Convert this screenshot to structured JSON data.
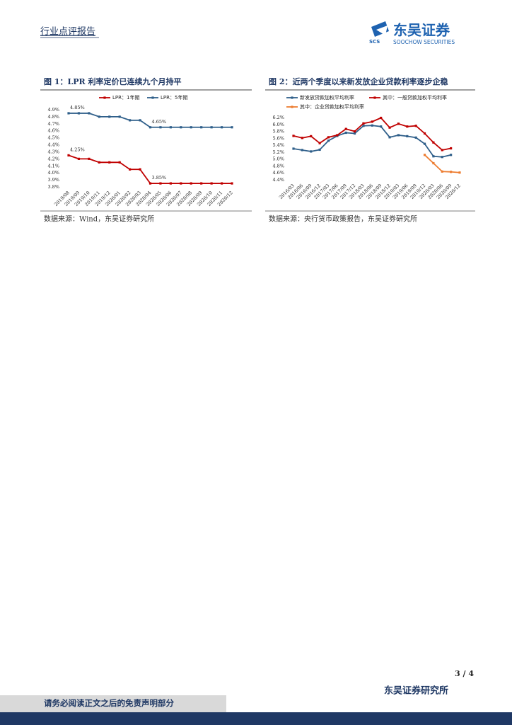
{
  "header": {
    "report_type": "行业点评报告",
    "logo_cn": "东吴证券",
    "logo_abbr": "SCS",
    "logo_en": "SOOCHOW SECURITIES"
  },
  "chart_data": [
    {
      "type": "line",
      "title": "图 1：LPR 利率定价已连续九个月持平",
      "source": "数据来源：Wind，东吴证券研究所",
      "categories": [
        "2019/08",
        "2019/09",
        "2019/10",
        "2019/11",
        "2019/12",
        "2020/01",
        "2020/02",
        "2020/03",
        "2020/04",
        "2020/05",
        "2020/06",
        "2020/07",
        "2020/08",
        "2020/09",
        "2020/10",
        "2020/11",
        "2020/12"
      ],
      "series": [
        {
          "name": "LPR：1年期",
          "color": "#c00000",
          "values": [
            4.25,
            4.2,
            4.2,
            4.15,
            4.15,
            4.15,
            4.05,
            4.05,
            3.85,
            3.85,
            3.85,
            3.85,
            3.85,
            3.85,
            3.85,
            3.85,
            3.85
          ],
          "value_labels": [
            "4.25%",
            null,
            null,
            null,
            null,
            null,
            null,
            null,
            "3.85%",
            null,
            null,
            null,
            null,
            null,
            null,
            null,
            null
          ]
        },
        {
          "name": "LPR：5年期",
          "color": "#2f5f8a",
          "values": [
            4.85,
            4.85,
            4.85,
            4.8,
            4.8,
            4.8,
            4.75,
            4.75,
            4.65,
            4.65,
            4.65,
            4.65,
            4.65,
            4.65,
            4.65,
            4.65,
            4.65
          ],
          "value_labels": [
            "4.85%",
            null,
            null,
            null,
            null,
            null,
            null,
            null,
            "4.65%",
            null,
            null,
            null,
            null,
            null,
            null,
            null,
            null
          ]
        }
      ],
      "ylim": [
        3.8,
        4.9
      ],
      "yticks": [
        {
          "value": 3.8,
          "label": "3.8%"
        },
        {
          "value": 3.9,
          "label": "3.9%"
        },
        {
          "value": 4.0,
          "label": "4.0%"
        },
        {
          "value": 4.1,
          "label": "4.1%"
        },
        {
          "value": 4.2,
          "label": "4.2%"
        },
        {
          "value": 4.3,
          "label": "4.3%"
        },
        {
          "value": 4.4,
          "label": "4.4%"
        },
        {
          "value": 4.5,
          "label": "4.5%"
        },
        {
          "value": 4.6,
          "label": "4.6%"
        },
        {
          "value": 4.7,
          "label": "4.7%"
        },
        {
          "value": 4.8,
          "label": "4.8%"
        },
        {
          "value": 4.9,
          "label": "4.9%"
        }
      ],
      "grid": false,
      "legend": "top"
    },
    {
      "type": "line",
      "title": "图 2：近两个季度以来新发放企业贷款利率逐步企稳",
      "source": "数据来源：央行货币政策报告，东吴证券研究所",
      "categories": [
        "2016/03",
        "2016/06",
        "2016/09",
        "2016/12",
        "2017/03",
        "2017/06",
        "2017/09",
        "2017/12",
        "2018/03",
        "2018/06",
        "2018/09",
        "2018/12",
        "2019/03",
        "2019/06",
        "2019/09",
        "2019/12",
        "2020/03",
        "2020/06",
        "2020/09",
        "2020/12"
      ],
      "series": [
        {
          "name": "新发放贷款加权平均利率",
          "color": "#2f5f8a",
          "values": [
            5.3,
            5.26,
            5.22,
            5.27,
            5.53,
            5.67,
            5.76,
            5.74,
            5.96,
            5.97,
            5.94,
            5.63,
            5.69,
            5.66,
            5.62,
            5.44,
            5.08,
            5.06,
            5.12,
            null
          ]
        },
        {
          "name": "其中：一般贷款加权平均利率",
          "color": "#c00000",
          "values": [
            5.67,
            5.61,
            5.66,
            5.46,
            5.63,
            5.69,
            5.87,
            5.8,
            6.03,
            6.08,
            6.19,
            5.91,
            6.02,
            5.94,
            5.96,
            5.74,
            5.48,
            5.26,
            5.31,
            null
          ]
        },
        {
          "name": "其中：企业贷款加权平均利率",
          "color": "#ed7d31",
          "values": [
            null,
            null,
            null,
            null,
            null,
            null,
            null,
            null,
            null,
            null,
            null,
            null,
            null,
            null,
            null,
            5.12,
            4.88,
            4.64,
            4.63,
            4.61
          ]
        }
      ],
      "ylim": [
        4.4,
        6.2
      ],
      "yticks": [
        {
          "value": 4.4,
          "label": "4.4%"
        },
        {
          "value": 4.6,
          "label": "4.6%"
        },
        {
          "value": 4.8,
          "label": "4.8%"
        },
        {
          "value": 5.0,
          "label": "5.0%"
        },
        {
          "value": 5.2,
          "label": "5.2%"
        },
        {
          "value": 5.4,
          "label": "5.4%"
        },
        {
          "value": 5.6,
          "label": "5.6%"
        },
        {
          "value": 5.8,
          "label": "5.8%"
        },
        {
          "value": 6.0,
          "label": "6.0%"
        },
        {
          "value": 6.2,
          "label": "6.2%"
        }
      ],
      "grid": false,
      "legend": "top"
    }
  ],
  "footer": {
    "page": "3 / 4",
    "institute": "东吴证券研究所",
    "disclaimer": "请务必阅读正文之后的免责声明部分"
  }
}
